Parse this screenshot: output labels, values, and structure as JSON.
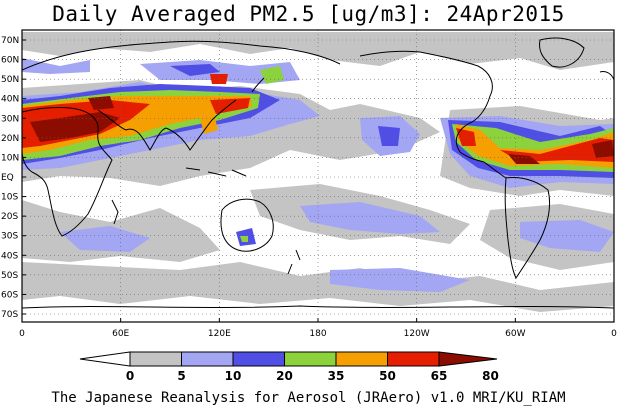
{
  "title": "Daily Averaged PM2.5 [ug/m3]: 24Apr2015",
  "footer": "The Japanese Reanalysis for Aerosol (JRAero) v1.0 MRI/KU_RIAM",
  "lat_labels": [
    "70N",
    "60N",
    "50N",
    "40N",
    "30N",
    "20N",
    "10N",
    "EQ",
    "10S",
    "20S",
    "30S",
    "40S",
    "50S",
    "60S",
    "70S"
  ],
  "lon_labels": [
    "0",
    "60E",
    "120E",
    "180",
    "120W",
    "60W",
    "0"
  ],
  "colorbar": {
    "bins": [
      {
        "label": "0",
        "color": "#ffffff"
      },
      {
        "label": "5",
        "color": "#c4c4c4"
      },
      {
        "label": "10",
        "color": "#a3a6f2"
      },
      {
        "label": "20",
        "color": "#4f4fe6"
      },
      {
        "label": "35",
        "color": "#8cd23c"
      },
      {
        "label": "50",
        "color": "#f5a000"
      },
      {
        "label": "65",
        "color": "#e61e00"
      },
      {
        "label": "80",
        "color": "#8c0d00"
      }
    ]
  },
  "map": {
    "ocean_color": "#ffffff",
    "coastline_color": "#000000",
    "grid_style": "dotted"
  }
}
